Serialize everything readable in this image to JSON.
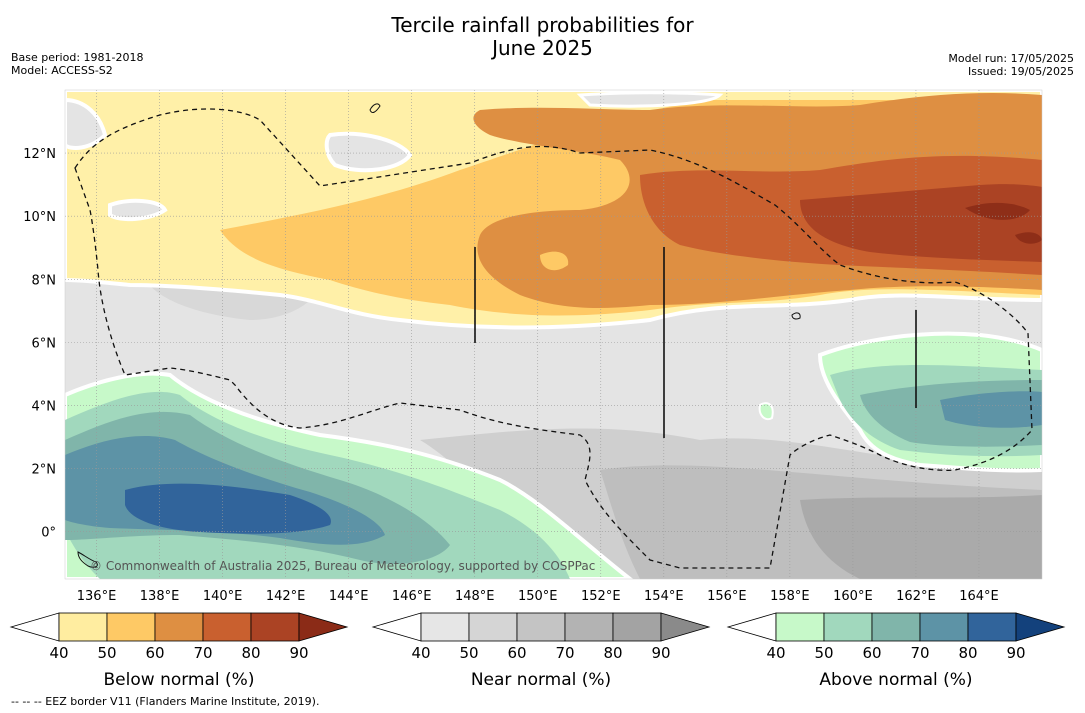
{
  "header": {
    "title_line1": "Tercile rainfall probabilities for",
    "title_line2": "June 2025",
    "base_period": "Base period: 1981-2018",
    "model": "Model: ACCESS-S2",
    "model_run": "Model run: 17/05/2025",
    "issued": "Issued: 19/05/2025"
  },
  "map": {
    "lon_labels": [
      "136°E",
      "138°E",
      "140°E",
      "142°E",
      "144°E",
      "146°E",
      "148°E",
      "150°E",
      "152°E",
      "154°E",
      "156°E",
      "158°E",
      "160°E",
      "162°E",
      "164°E"
    ],
    "lat_labels": [
      "12°N",
      "10°N",
      "8°N",
      "6°N",
      "4°N",
      "2°N",
      "0°"
    ],
    "lon_range": [
      135,
      166
    ],
    "lat_range": [
      -1.5,
      14
    ],
    "copyright": "© Commonwealth of Australia 2025, Bureau of Meteorology, supported by COSPPac",
    "regions": [
      {
        "name": "below-normal-north",
        "category": "below normal",
        "lat_range": [
          5.5,
          14
        ],
        "max_probability": 90
      },
      {
        "name": "near-normal-central",
        "category": "near normal",
        "lat_range": [
          -1.5,
          7
        ],
        "max_probability": 70
      },
      {
        "name": "above-normal-southwest",
        "category": "above normal",
        "lon_range": [
          135,
          152
        ],
        "lat_range": [
          -1.5,
          5
        ],
        "max_probability": 90
      },
      {
        "name": "above-normal-east",
        "category": "above normal",
        "lon_range": [
          157,
          166
        ],
        "lat_range": [
          1.5,
          6
        ],
        "max_probability": 70
      }
    ]
  },
  "colorbars": [
    {
      "title": "Below normal (%)",
      "ticks": [
        "40",
        "50",
        "60",
        "70",
        "80",
        "90"
      ],
      "colors": [
        "#ffeda0",
        "#fec965",
        "#de8f42",
        "#c9602f",
        "#ab4324",
        "#8b2b17"
      ]
    },
    {
      "title": "Near normal (%)",
      "ticks": [
        "40",
        "50",
        "60",
        "70",
        "80",
        "90"
      ],
      "colors": [
        "#e6e6e6",
        "#d5d5d5",
        "#c4c4c4",
        "#b3b3b3",
        "#a3a3a3",
        "#8a8a8a"
      ]
    },
    {
      "title": "Above normal (%)",
      "ticks": [
        "40",
        "50",
        "60",
        "70",
        "80",
        "90"
      ],
      "colors": [
        "#c7f9c9",
        "#a1d8bd",
        "#80b5aa",
        "#5d93a6",
        "#31649b",
        "#13417c"
      ]
    }
  ],
  "footnote": "--  --  -- EEZ border V11 (Flanders Marine Institute, 2019)."
}
